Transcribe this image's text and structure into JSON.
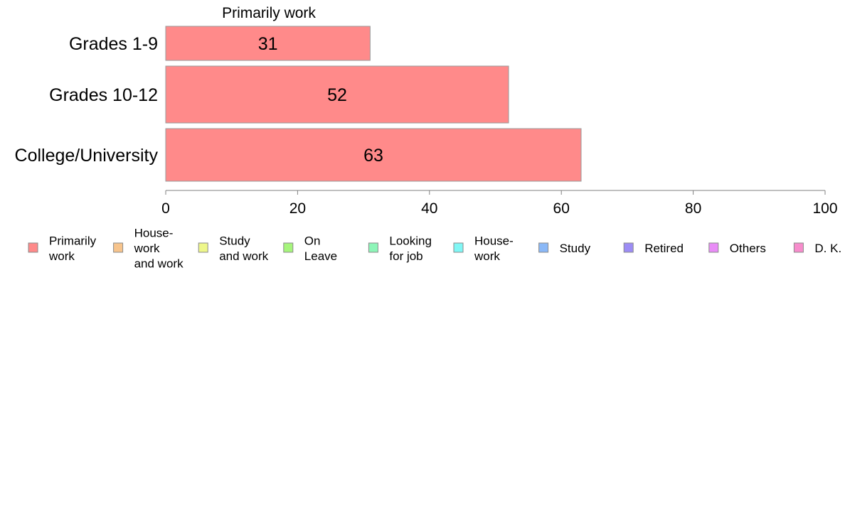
{
  "chart_data": {
    "type": "bar",
    "orientation": "horizontal",
    "title": "Primarily work",
    "categories": [
      "Grades 1-9",
      "Grades 10-12",
      "College/University"
    ],
    "series": [
      {
        "name": "Primarily work",
        "values": [
          31,
          52,
          63
        ]
      }
    ],
    "data_labels": [
      "31",
      "52",
      "63"
    ],
    "xlim": [
      0,
      100
    ],
    "x_ticks": [
      0,
      20,
      40,
      60,
      80,
      100
    ],
    "grid": false,
    "legend_position": "bottom",
    "legend": [
      {
        "lines": [
          "Primarily",
          "work"
        ],
        "color": "#ff8a8a"
      },
      {
        "lines": [
          "House-",
          "work",
          "and work"
        ],
        "color": "#f7c48c"
      },
      {
        "lines": [
          "Study",
          "and work"
        ],
        "color": "#eef78a"
      },
      {
        "lines": [
          "On",
          "Leave"
        ],
        "color": "#a6f57c"
      },
      {
        "lines": [
          "Looking",
          "for job"
        ],
        "color": "#8df5b8"
      },
      {
        "lines": [
          "House-",
          "work"
        ],
        "color": "#80f7f5"
      },
      {
        "lines": [
          "Study"
        ],
        "color": "#8ab8f7"
      },
      {
        "lines": [
          "Retired"
        ],
        "color": "#9c8cf5"
      },
      {
        "lines": [
          "Others"
        ],
        "color": "#e98cf7"
      },
      {
        "lines": [
          "D. K."
        ],
        "color": "#f78ccc"
      }
    ]
  },
  "colors": {
    "bar_fill": "#ff8a8a",
    "bar_stroke": "#9a9a9a",
    "axis": "#808080",
    "text": "#000000"
  }
}
